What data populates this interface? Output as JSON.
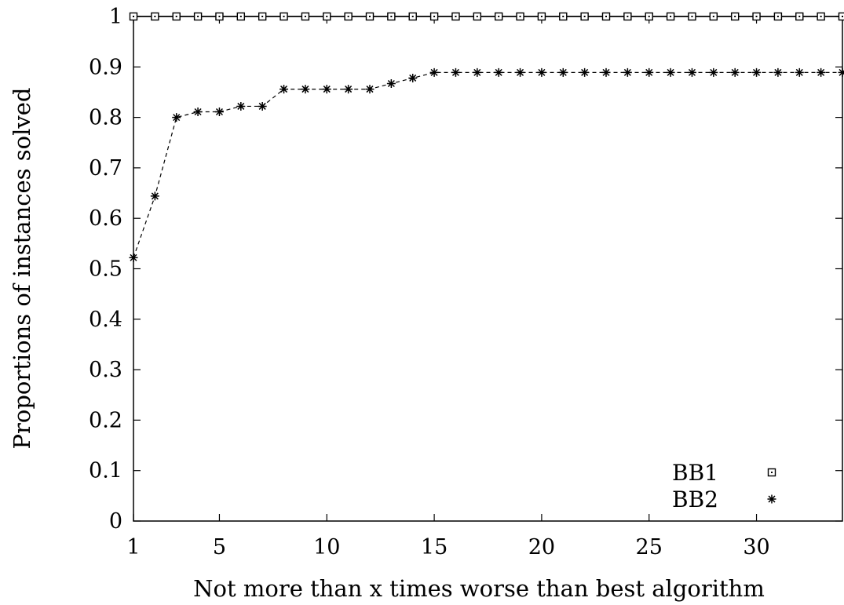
{
  "chart_data": {
    "type": "line",
    "xlabel": "Not more than x times worse than best algorithm",
    "ylabel": "Proportions of instances solved",
    "xlim": [
      1,
      34
    ],
    "ylim": [
      0,
      1
    ],
    "x_ticks": [
      1,
      5,
      10,
      15,
      20,
      25,
      30
    ],
    "x_tick_labels": [
      "1",
      "5",
      "10",
      "15",
      "20",
      "25",
      "30"
    ],
    "y_ticks": [
      0,
      0.1,
      0.2,
      0.3,
      0.4,
      0.5,
      0.6,
      0.7,
      0.8,
      0.9,
      1
    ],
    "y_tick_labels": [
      "0",
      "0.1",
      "0.2",
      "0.3",
      "0.4",
      "0.5",
      "0.6",
      "0.7",
      "0.8",
      "0.9",
      "1"
    ],
    "grid": false,
    "legend_position": "bottom-right",
    "series": [
      {
        "name": "BB1",
        "marker": "square",
        "line_style": "solid",
        "x": [
          1,
          2,
          3,
          4,
          5,
          6,
          7,
          8,
          9,
          10,
          11,
          12,
          13,
          14,
          15,
          16,
          17,
          18,
          19,
          20,
          21,
          22,
          23,
          24,
          25,
          26,
          27,
          28,
          29,
          30,
          31,
          32,
          33,
          34
        ],
        "values": [
          1,
          1,
          1,
          1,
          1,
          1,
          1,
          1,
          1,
          1,
          1,
          1,
          1,
          1,
          1,
          1,
          1,
          1,
          1,
          1,
          1,
          1,
          1,
          1,
          1,
          1,
          1,
          1,
          1,
          1,
          1,
          1,
          1,
          1
        ]
      },
      {
        "name": "BB2",
        "marker": "star",
        "line_style": "dashed",
        "x": [
          1,
          2,
          3,
          4,
          5,
          6,
          7,
          8,
          9,
          10,
          11,
          12,
          13,
          14,
          15,
          16,
          17,
          18,
          19,
          20,
          21,
          22,
          23,
          24,
          25,
          26,
          27,
          28,
          29,
          30,
          31,
          32,
          33,
          34
        ],
        "values": [
          0.522,
          0.644,
          0.8,
          0.811,
          0.811,
          0.822,
          0.822,
          0.856,
          0.856,
          0.856,
          0.856,
          0.856,
          0.867,
          0.878,
          0.889,
          0.889,
          0.889,
          0.889,
          0.889,
          0.889,
          0.889,
          0.889,
          0.889,
          0.889,
          0.889,
          0.889,
          0.889,
          0.889,
          0.889,
          0.889,
          0.889,
          0.889,
          0.889,
          0.889
        ]
      }
    ]
  }
}
